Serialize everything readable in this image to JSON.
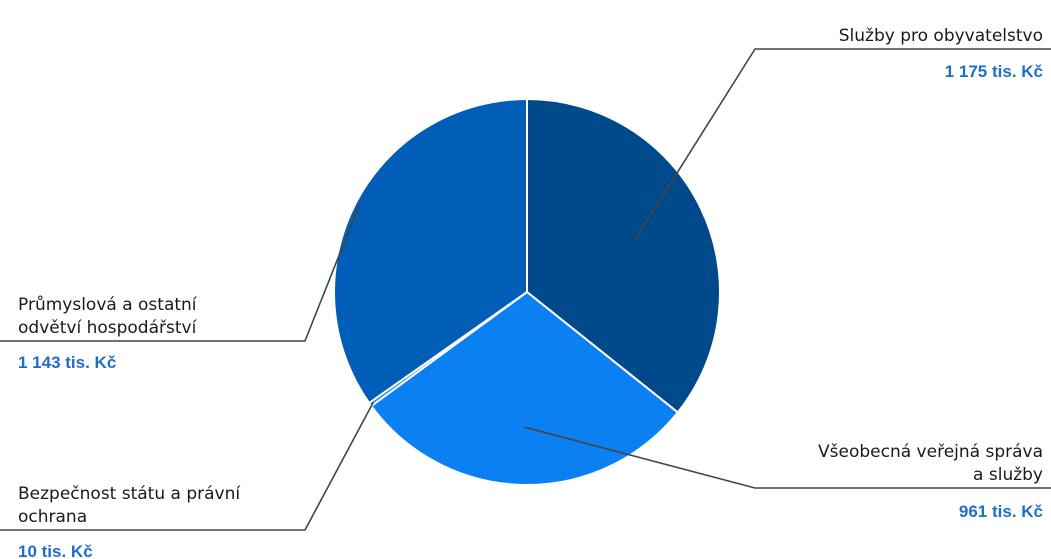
{
  "chart_data": {
    "type": "pie",
    "unit": "tis. Kč",
    "slices": [
      {
        "name": "Služby pro obyvatelstvo",
        "label_lines": [
          "Služby pro obyvatelstvo"
        ],
        "value": 1175,
        "value_label": "1 175 tis. Kč",
        "color": "#004a8c"
      },
      {
        "name": "Všeobecná veřejná správa a služby",
        "label_lines": [
          "Všeobecná veřejná správa",
          "a služby"
        ],
        "value": 961,
        "value_label": "961 tis. Kč",
        "color": "#0a80f2"
      },
      {
        "name": "Bezpečnost státu a právní ochrana",
        "label_lines": [
          "Bezpečnost státu a právní",
          "ochrana"
        ],
        "value": 10,
        "value_label": "10 tis. Kč",
        "color": "#0a80f2"
      },
      {
        "name": "Průmyslová a ostatní odvětví hospodářství",
        "label_lines": [
          "Průmyslová a ostatní",
          "odvětví hospodářství"
        ],
        "value": 1143,
        "value_label": "1 143 tis. Kč",
        "color": "#005eb8"
      }
    ]
  }
}
